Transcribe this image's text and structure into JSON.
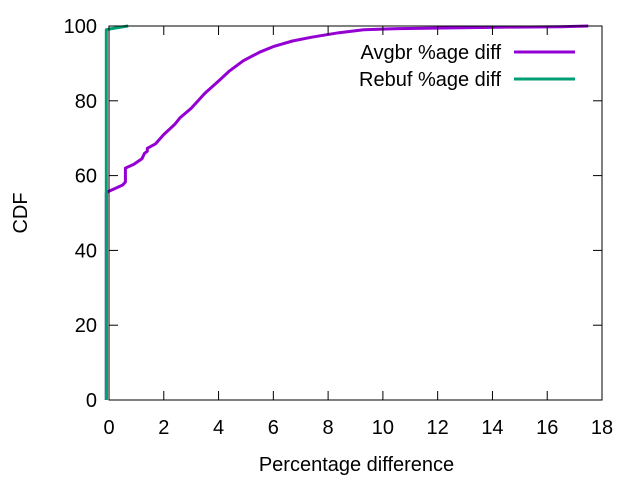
{
  "chart_data": {
    "type": "line",
    "title": "",
    "xlabel": "Percentage difference",
    "ylabel": "CDF",
    "xlim": [
      0,
      18
    ],
    "ylim": [
      0,
      100
    ],
    "x_ticks": [
      0,
      2,
      4,
      6,
      8,
      10,
      12,
      14,
      16,
      18
    ],
    "y_ticks": [
      0,
      20,
      40,
      60,
      80,
      100
    ],
    "grid": false,
    "legend_position": "top-right",
    "series": [
      {
        "name": "Avgbr %age diff",
        "color": "#9400D3",
        "x": [
          -0.1,
          -0.1,
          0.2,
          0.5,
          0.6,
          0.6,
          0.9,
          1.2,
          1.3,
          1.4,
          1.4,
          1.7,
          2.0,
          2.4,
          2.6,
          3.0,
          3.5,
          4.0,
          4.4,
          4.9,
          5.5,
          6.0,
          6.7,
          7.4,
          8.4,
          9.3,
          10.6,
          12.5,
          14.8,
          16.5,
          17.5
        ],
        "y": [
          0,
          55.5,
          56.5,
          57.5,
          58.3,
          62.0,
          63.0,
          64.5,
          66.0,
          66.5,
          67.3,
          68.5,
          71.0,
          73.7,
          75.5,
          78.0,
          82.0,
          85.3,
          88.0,
          90.7,
          93.0,
          94.5,
          96.0,
          97.0,
          98.2,
          99.0,
          99.3,
          99.5,
          99.7,
          99.8,
          100
        ]
      },
      {
        "name": "Rebuf %age diff",
        "color": "#009E73",
        "x": [
          -0.1,
          -0.1,
          0.1,
          0.7
        ],
        "y": [
          0,
          99.0,
          99.3,
          100
        ]
      }
    ]
  }
}
